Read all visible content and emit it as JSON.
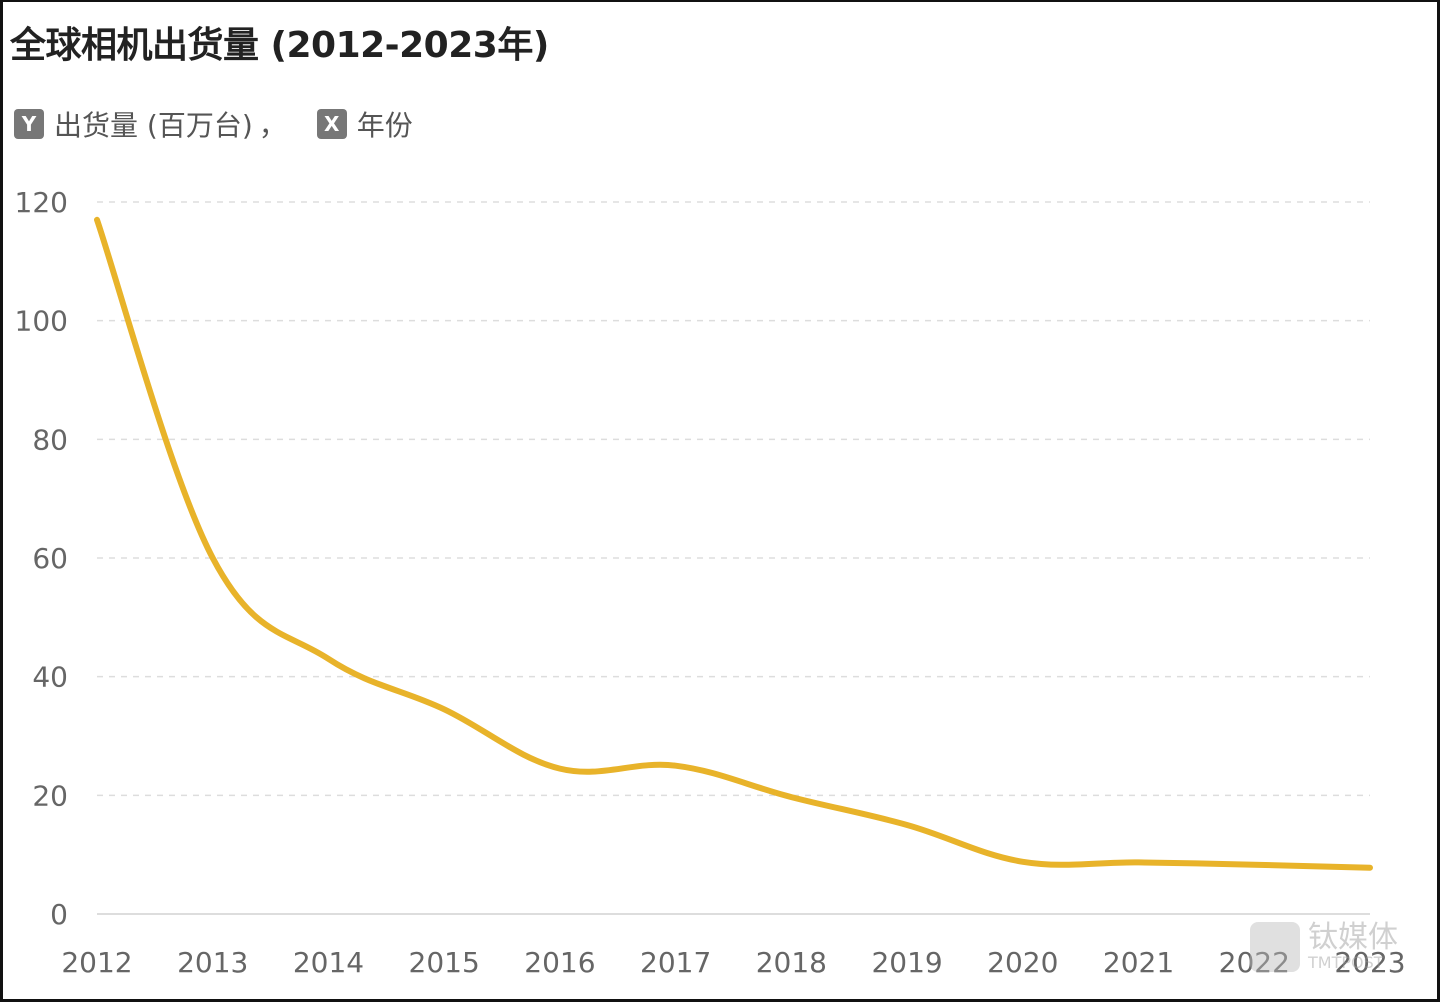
{
  "chart_data": {
    "type": "line",
    "title": "全球相机出货量 (2012-2023年)",
    "legend": {
      "y_badge": "Y",
      "y_label": "出货量 (百万台)",
      "separator": "，",
      "x_badge": "X",
      "x_label": "年份"
    },
    "categories": [
      "2012",
      "2013",
      "2014",
      "2015",
      "2016",
      "2017",
      "2018",
      "2019",
      "2020",
      "2021",
      "2022",
      "2023"
    ],
    "series": [
      {
        "values": [
          117,
          60,
          43,
          34.5,
          24.5,
          25,
          19.7,
          15,
          8.8,
          8.7,
          8.3,
          7.8
        ],
        "color": "#E8B32A"
      }
    ],
    "yticks": [
      0,
      20,
      40,
      60,
      80,
      100,
      120
    ],
    "ylim": [
      0,
      120
    ],
    "grid": true,
    "legend_placement": "top-left"
  },
  "watermark": {
    "name": "钛媒体",
    "sub": "TMTPOST"
  }
}
